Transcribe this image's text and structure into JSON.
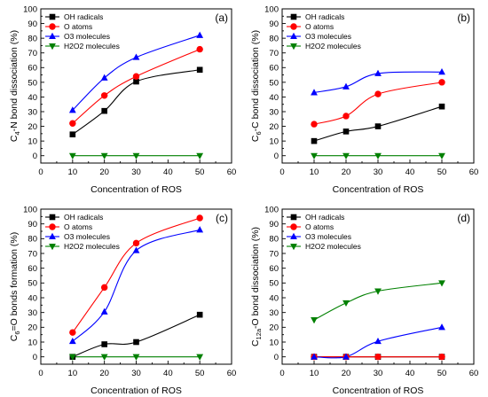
{
  "colors": {
    "OH radicals": "#000000",
    "O atoms": "#ff0000",
    "O3 molecules": "#0000ff",
    "H2O2 molecules": "#008000"
  },
  "chart_data": [
    {
      "type": "line",
      "panel": "(a)",
      "xlabel": "Concentration of ROS",
      "ylabel_parts": [
        "C",
        "4",
        "-N bond dissociation (%)"
      ],
      "xlim": [
        0,
        60
      ],
      "ylim": [
        -5,
        100
      ],
      "xticks": [
        0,
        10,
        20,
        30,
        40,
        50,
        60
      ],
      "yticks": [
        0,
        10,
        20,
        30,
        40,
        50,
        60,
        70,
        80,
        90,
        100
      ],
      "legend": "top-left",
      "x": [
        10,
        20,
        30,
        50
      ],
      "series": [
        {
          "name": "OH radicals",
          "marker": "square",
          "values": [
            14.5,
            30.5,
            50.5,
            58.5
          ]
        },
        {
          "name": "O atoms",
          "marker": "circle",
          "values": [
            22,
            41,
            54,
            72.5
          ]
        },
        {
          "name": "O3 molecules",
          "marker": "triangle-up",
          "values": [
            31,
            53,
            67,
            82
          ]
        },
        {
          "name": "H2O2 molecules",
          "marker": "triangle-down",
          "values": [
            0,
            0,
            0,
            0
          ]
        }
      ]
    },
    {
      "type": "line",
      "panel": "(b)",
      "xlabel": "Concentration of ROS",
      "ylabel_parts": [
        "C",
        "6",
        "-C bond dissociation (%)"
      ],
      "xlim": [
        0,
        60
      ],
      "ylim": [
        -5,
        100
      ],
      "xticks": [
        0,
        10,
        20,
        30,
        40,
        50,
        60
      ],
      "yticks": [
        0,
        10,
        20,
        30,
        40,
        50,
        60,
        70,
        80,
        90,
        100
      ],
      "legend": "top-left",
      "x": [
        10,
        20,
        30,
        50
      ],
      "series": [
        {
          "name": "OH radicals",
          "marker": "square",
          "values": [
            10,
            16.5,
            20,
            33.5
          ]
        },
        {
          "name": "O atoms",
          "marker": "circle",
          "values": [
            21.5,
            27,
            42,
            50
          ]
        },
        {
          "name": "O3 molecules",
          "marker": "triangle-up",
          "values": [
            43,
            47,
            56,
            57
          ]
        },
        {
          "name": "H2O2 molecules",
          "marker": "triangle-down",
          "values": [
            0,
            0,
            0,
            0
          ]
        }
      ]
    },
    {
      "type": "line",
      "panel": "(c)",
      "xlabel": "Concentration of ROS",
      "ylabel_parts": [
        "C",
        "6",
        "=O bonds formation (%)"
      ],
      "xlim": [
        0,
        60
      ],
      "ylim": [
        -5,
        100
      ],
      "xticks": [
        0,
        10,
        20,
        30,
        40,
        50,
        60
      ],
      "yticks": [
        0,
        10,
        20,
        30,
        40,
        50,
        60,
        70,
        80,
        90,
        100
      ],
      "legend": "top-left",
      "x": [
        10,
        20,
        30,
        50
      ],
      "series": [
        {
          "name": "OH radicals",
          "marker": "square",
          "values": [
            0,
            8.5,
            10,
            28.5
          ]
        },
        {
          "name": "O atoms",
          "marker": "circle",
          "values": [
            16.5,
            47,
            77,
            94
          ]
        },
        {
          "name": "O3 molecules",
          "marker": "triangle-up",
          "values": [
            10.5,
            30.5,
            72,
            86
          ]
        },
        {
          "name": "H2O2 molecules",
          "marker": "triangle-down",
          "values": [
            0,
            0,
            0,
            0
          ]
        }
      ]
    },
    {
      "type": "line",
      "panel": "(d)",
      "xlabel": "Concentration of ROS",
      "ylabel_parts": [
        "C",
        "12a",
        "-O bond dissociation (%)"
      ],
      "xlim": [
        0,
        60
      ],
      "ylim": [
        -5,
        100
      ],
      "xticks": [
        0,
        10,
        20,
        30,
        40,
        50,
        60
      ],
      "yticks": [
        0,
        10,
        20,
        30,
        40,
        50,
        60,
        70,
        80,
        90,
        100
      ],
      "legend": "top-left",
      "x": [
        10,
        20,
        30,
        50
      ],
      "series": [
        {
          "name": "OH radicals",
          "marker": "square",
          "values": [
            0,
            0,
            0,
            0
          ]
        },
        {
          "name": "O atoms",
          "marker": "circle",
          "values": [
            0,
            0,
            0,
            0
          ]
        },
        {
          "name": "O3 molecules",
          "marker": "triangle-up",
          "values": [
            0,
            0,
            10.5,
            20
          ]
        },
        {
          "name": "H2O2 molecules",
          "marker": "triangle-down",
          "values": [
            25,
            36.5,
            44.5,
            50
          ]
        }
      ]
    }
  ]
}
